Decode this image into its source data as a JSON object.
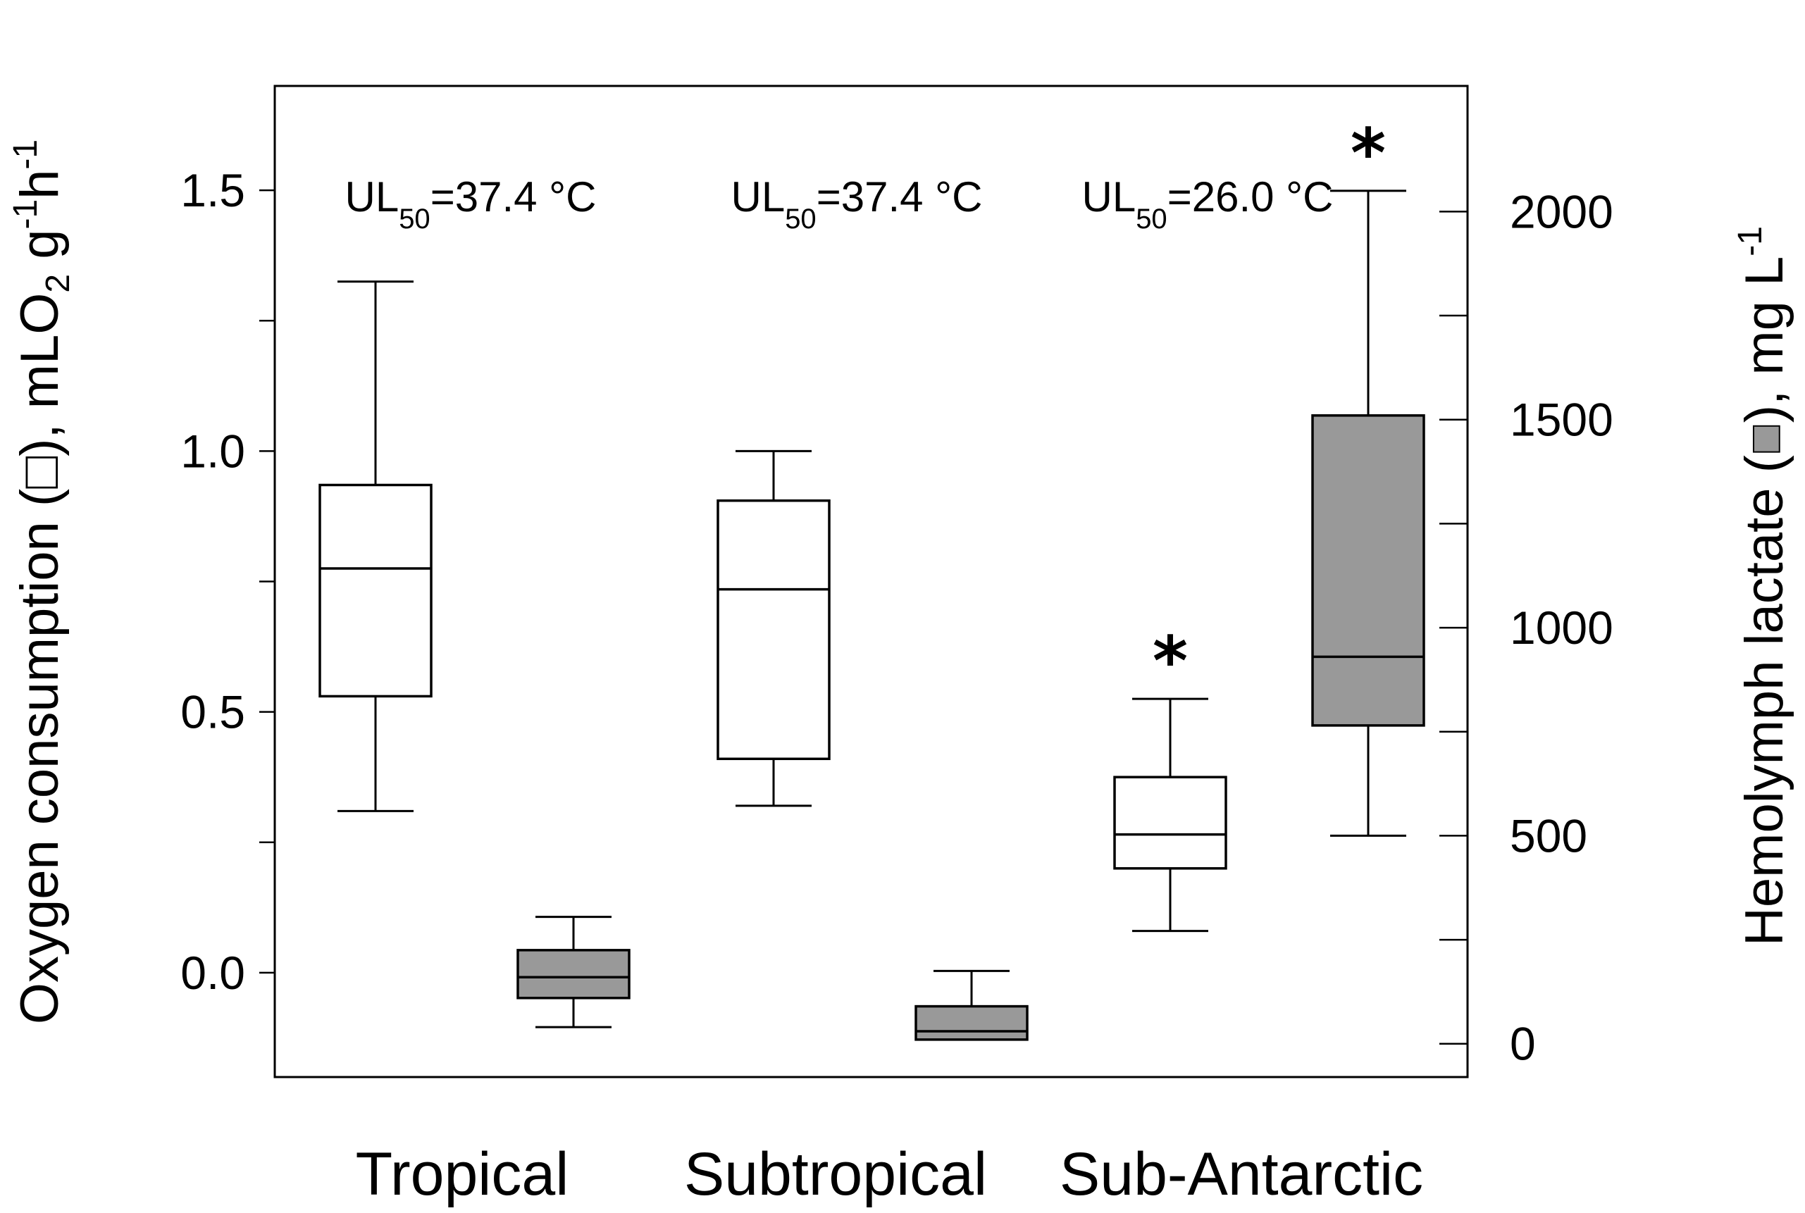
{
  "chart_data": {
    "type": "boxplot",
    "categories": [
      "Tropical",
      "Subtropical",
      "Sub-Antarctic"
    ],
    "y_left": {
      "label_prefix": "Oxygen consumption (",
      "label_mid": "), mLO",
      "label_sub": "2",
      "label_g": " g",
      "label_sup1": "-1",
      "label_h": "h",
      "label_sup2": "-1",
      "ylim": [
        -0.2,
        1.7
      ],
      "ticks": [
        0.0,
        0.5,
        1.0,
        1.5
      ],
      "tick_labels": [
        "0.0",
        "0.5",
        "1.0",
        "1.5"
      ],
      "minor_ticks": [
        0.25,
        0.75,
        1.25
      ]
    },
    "y_right": {
      "label_prefix": "Hemolymph lactate (",
      "label_mid": "), mg L",
      "label_sup": "-1",
      "ylim": [
        -80,
        2302
      ],
      "ticks": [
        0,
        500,
        1000,
        1500,
        2000
      ],
      "tick_labels": [
        "0",
        "500",
        "1000",
        "1500",
        "2000"
      ],
      "minor_ticks": [
        250,
        750,
        1250,
        1750
      ]
    },
    "series": [
      {
        "legend_symbol": "open-box",
        "axis": "left",
        "boxes": [
          {
            "category": "Tropical",
            "whisker_low": 0.31,
            "q1": 0.53,
            "median": 0.775,
            "q3": 0.935,
            "whisker_high": 1.325
          },
          {
            "category": "Subtropical",
            "whisker_low": 0.32,
            "q1": 0.41,
            "median": 0.735,
            "q3": 0.905,
            "whisker_high": 1.0
          },
          {
            "category": "Sub-Antarctic",
            "whisker_low": 0.08,
            "q1": 0.2,
            "median": 0.265,
            "q3": 0.375,
            "whisker_high": 0.525,
            "significant": true
          }
        ]
      },
      {
        "legend_symbol": "gray-box",
        "axis": "right",
        "boxes": [
          {
            "category": "Tropical",
            "whisker_low": 40,
            "q1": 110,
            "median": 160,
            "q3": 225,
            "whisker_high": 305
          },
          {
            "category": "Subtropical",
            "whisker_low": 10,
            "q1": 10,
            "median": 30,
            "q3": 90,
            "whisker_high": 175
          },
          {
            "category": "Sub-Antarctic",
            "whisker_low": 500,
            "q1": 765,
            "median": 930,
            "q3": 1510,
            "whisker_high": 2050,
            "significant": true
          }
        ]
      }
    ],
    "annotations": [
      {
        "category": "Tropical",
        "prefix": "UL",
        "sub": "50",
        "suffix": "=37.4 °C"
      },
      {
        "category": "Subtropical",
        "prefix": "UL",
        "sub": "50",
        "suffix": "=37.4 °C"
      },
      {
        "category": "Sub-Antarctic",
        "prefix": "UL",
        "sub": "50",
        "suffix": "=26.0 °C"
      }
    ],
    "significance_marker": "*",
    "colors": {
      "open_box": "#ffffff",
      "gray_box": "#999999",
      "stroke": "#000000"
    },
    "grid": false
  }
}
